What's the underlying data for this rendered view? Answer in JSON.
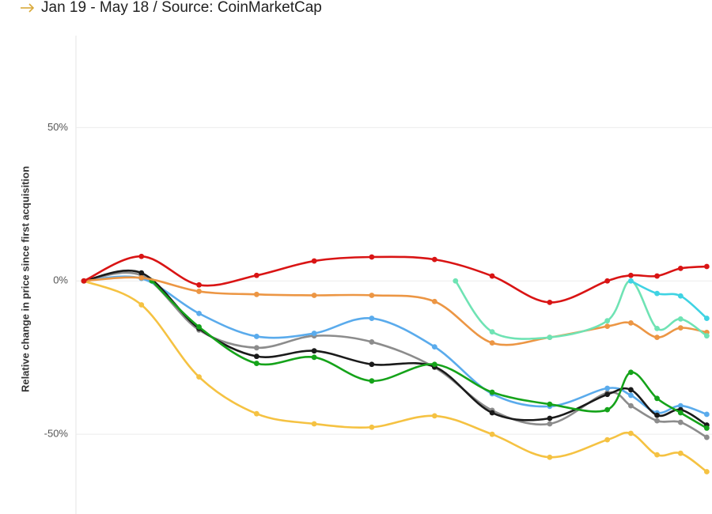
{
  "chart_data": {
    "type": "line",
    "subtitle": "Jan 19 - May 18 / Source: CoinMarketCap",
    "y_label": "Relative change in price since first acquisition",
    "xlim": [
      0,
      120
    ],
    "ylim": [
      -76,
      80
    ],
    "yticks": [
      {
        "value": 50,
        "label": "50%"
      },
      {
        "value": 0,
        "label": "0%"
      },
      {
        "value": -50,
        "label": "-50%"
      }
    ],
    "grid": true,
    "series": [
      {
        "color": "#f5c242",
        "x": [
          0,
          11,
          22,
          33,
          44,
          55,
          67,
          78,
          89,
          100,
          104.5,
          109.5,
          114,
          119
        ],
        "values": [
          0,
          -7.8,
          -31.3,
          -43.3,
          -46.6,
          -47.7,
          -44,
          -50,
          -57.5,
          -51.8,
          -49.7,
          -56.7,
          -56.2,
          -62.2
        ]
      },
      {
        "color": "#8c8c8c",
        "x": [
          0,
          11,
          22,
          33,
          44,
          55,
          67,
          78,
          89,
          100,
          104.5,
          109.5,
          114,
          119
        ],
        "values": [
          0,
          1.8,
          -16,
          -21.8,
          -17.9,
          -19.9,
          -28.2,
          -42.2,
          -46.6,
          -36.5,
          -40.7,
          -45.6,
          -46.1,
          -51
        ]
      },
      {
        "color": "#5aabec",
        "x": [
          0,
          11,
          22,
          33,
          44,
          55,
          67,
          78,
          89,
          100,
          104.5,
          109.5,
          114,
          119
        ],
        "values": [
          0,
          0.8,
          -10.6,
          -18.1,
          -17.1,
          -12.2,
          -21.5,
          -36.8,
          -40.9,
          -35,
          -37.3,
          -43,
          -40.7,
          -43.5
        ]
      },
      {
        "color": "#1a1a1a",
        "x": [
          0,
          11,
          22,
          33,
          44,
          55,
          67,
          78,
          89,
          100,
          104.5,
          109.5,
          114,
          119
        ],
        "values": [
          0,
          2.6,
          -15.5,
          -24.6,
          -22.8,
          -27.2,
          -28,
          -43,
          -44.8,
          -37,
          -35.5,
          -43.8,
          -42,
          -47
        ]
      },
      {
        "color": "#15a31a",
        "x": [
          13,
          22,
          33,
          44,
          55,
          67,
          78,
          89,
          100,
          104.5,
          109.5,
          114,
          119
        ],
        "values": [
          0,
          -15,
          -26.9,
          -24.9,
          -32.6,
          -27.2,
          -36.3,
          -40.2,
          -42,
          -29.8,
          -38.3,
          -43,
          -48
        ]
      },
      {
        "color": "#ec9644",
        "x": [
          0,
          11,
          22,
          33,
          44,
          55,
          67,
          78,
          89,
          100,
          104.5,
          109.5,
          114,
          119
        ],
        "values": [
          0,
          1,
          -3.4,
          -4.4,
          -4.7,
          -4.7,
          -6.7,
          -20.2,
          -18.4,
          -14.8,
          -13.7,
          -18.4,
          -15.3,
          -16.8
        ]
      },
      {
        "color": "#6fe3b4",
        "x": [
          71,
          78,
          89,
          100,
          104.5,
          109.5,
          114,
          119
        ],
        "values": [
          0,
          -16.6,
          -18.4,
          -13,
          0,
          -15.5,
          -12.4,
          -17.9
        ]
      },
      {
        "color": "#3fd3e3",
        "x": [
          104.5,
          109.5,
          114,
          119
        ],
        "values": [
          0,
          -4.1,
          -4.9,
          -12.2
        ]
      },
      {
        "color": "#d91414",
        "x": [
          0,
          11,
          22,
          33,
          44,
          55,
          67,
          78,
          89,
          100,
          104.5,
          109.5,
          114,
          119
        ],
        "values": [
          0,
          8,
          -1.3,
          1.8,
          6.5,
          7.8,
          7,
          1.6,
          -7,
          0,
          1.8,
          1.6,
          4.1,
          4.7
        ]
      }
    ]
  }
}
